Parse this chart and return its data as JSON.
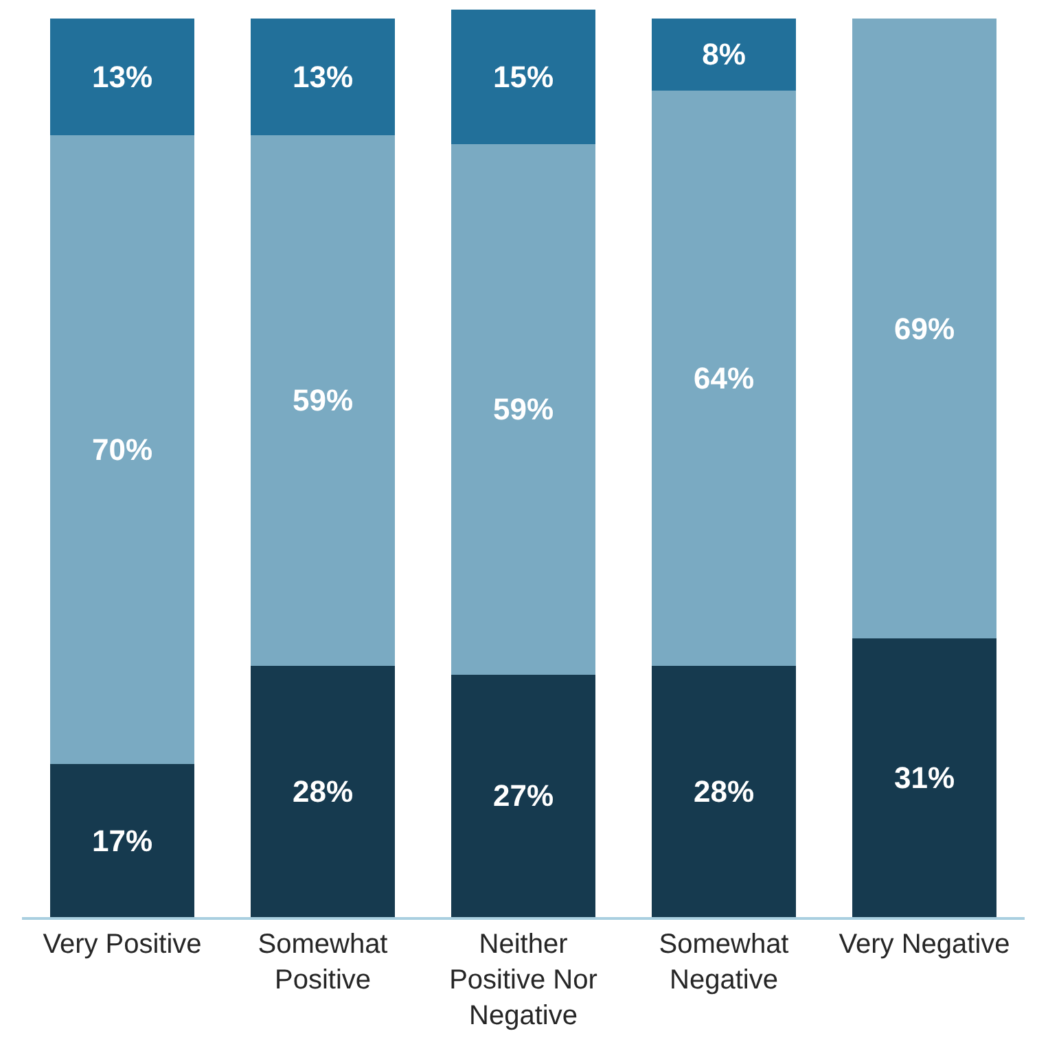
{
  "chart_data": {
    "type": "bar",
    "stacked": true,
    "categories": [
      "Very Positive",
      "Somewhat Positive",
      "Neither Positive Nor Negative",
      "Somewhat Negative",
      "Very Negative"
    ],
    "ylim": [
      0,
      101
    ],
    "series": [
      {
        "color": "#163a4f",
        "values": [
          17,
          28,
          27,
          28,
          31
        ],
        "value_labels": [
          "17%",
          "28%",
          "27%",
          "28%",
          "31%"
        ]
      },
      {
        "color": "#7aaac2",
        "values": [
          70,
          59,
          59,
          64,
          69
        ],
        "value_labels": [
          "70%",
          "59%",
          "59%",
          "64%",
          "69%"
        ]
      },
      {
        "color": "#22709a",
        "values": [
          13,
          13,
          15,
          8,
          null
        ],
        "value_labels": [
          "13%",
          "13%",
          "15%",
          "8%",
          null
        ]
      }
    ]
  }
}
